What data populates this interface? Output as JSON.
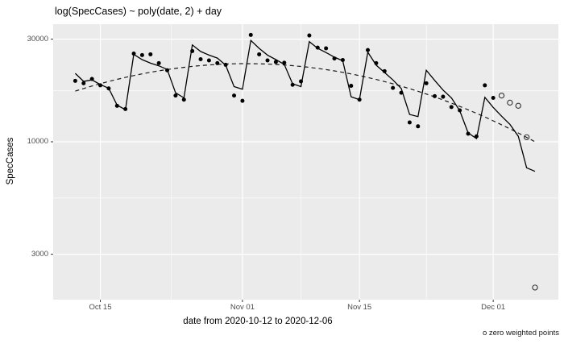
{
  "title": "log(SpecCases) ~ poly(date, 2) + day",
  "y_axis": {
    "label": "SpecCases",
    "ticks": [
      {
        "label": "30000",
        "value": 30000
      },
      {
        "label": "10000",
        "value": 10000
      },
      {
        "label": "3000",
        "value": 3000
      }
    ],
    "minor_gridline_values": [
      17320,
      5477
    ]
  },
  "x_axis": {
    "label": "date from 2020-10-12 to 2020-12-06",
    "ticks": [
      {
        "label": "Oct 15",
        "day_index": 3
      },
      {
        "label": "Nov 01",
        "day_index": 20
      },
      {
        "label": "Nov 15",
        "day_index": 34
      },
      {
        "label": "Dec 01",
        "day_index": 50
      }
    ],
    "minor_gridline_day_indices": [
      11.5,
      27,
      42
    ]
  },
  "caption": "o zero weighted points",
  "colors": {
    "panel_background": "#ebebeb",
    "gridline": "#ffffff",
    "axis_text": "#4d4d4d",
    "tick_mark": "#333333",
    "point": "#000000",
    "open_point_stroke": "#333333",
    "fit_line": "#000000",
    "trend_line": "#1a1a1a"
  },
  "chart_data": {
    "type": "scatter",
    "y_scale": "log10",
    "x_start_date": "2020-10-12",
    "x_end_date": "2020-12-06",
    "n_days": 56,
    "observed_values": [
      19200,
      18700,
      19600,
      18300,
      17700,
      14700,
      14200,
      25700,
      25300,
      25500,
      23200,
      21500,
      16400,
      15700,
      26400,
      24200,
      23900,
      23200,
      22800,
      16400,
      15500,
      31400,
      25500,
      23900,
      23500,
      23300,
      18400,
      19100,
      31200,
      27400,
      27200,
      24400,
      24000,
      18200,
      15700,
      26700,
      23200,
      21300,
      17800,
      16900,
      12300,
      11800,
      18700,
      16300,
      16200,
      14500,
      14000,
      10900,
      10600,
      18300,
      16000,
      16400,
      15200,
      14700,
      10500,
      2100
    ],
    "zero_weighted_start_index": 51,
    "zero_weighted_dates": [
      "2020-12-02",
      "2020-12-03",
      "2020-12-04",
      "2020-12-05",
      "2020-12-06"
    ],
    "fit_line_values": [
      20800,
      19100,
      19400,
      18450,
      17750,
      14800,
      14100,
      25500,
      24100,
      23200,
      22550,
      21700,
      16900,
      16000,
      28200,
      26300,
      25300,
      24500,
      22700,
      18050,
      17550,
      29600,
      27200,
      25300,
      24100,
      22900,
      18600,
      18050,
      29200,
      27200,
      26000,
      24750,
      23800,
      16200,
      15700,
      26100,
      22700,
      21000,
      19400,
      17700,
      13400,
      13100,
      21500,
      19300,
      17400,
      16000,
      13950,
      11000,
      10350,
      16100,
      14450,
      13150,
      12050,
      10600,
      7570,
      7290
    ],
    "trend_curve": {
      "form": "log10(y) = a + b*t + c*t^2, t = days since 2020-10-12",
      "a": 4.2355,
      "b": 0.012475,
      "c": -0.0003047,
      "style": "dashed"
    }
  }
}
